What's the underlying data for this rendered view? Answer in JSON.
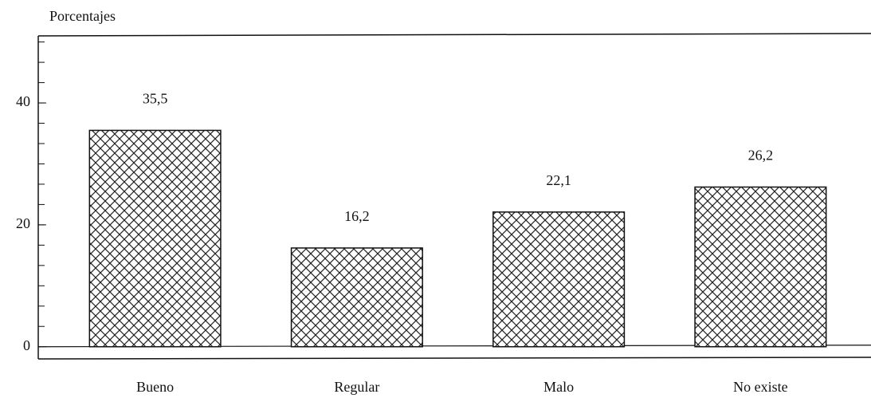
{
  "chart_data": {
    "type": "bar",
    "y_label": "Porcentajes",
    "categories": [
      "Bueno",
      "Regular",
      "Malo",
      "No existe"
    ],
    "values": [
      35.5,
      16.2,
      22.1,
      26.2
    ],
    "value_labels": [
      "35,5",
      "16,2",
      "22,1",
      "26,2"
    ],
    "color": "#111111",
    "ylim": [
      -2,
      51
    ],
    "yticks": [
      0,
      20,
      40
    ],
    "grid": false
  }
}
